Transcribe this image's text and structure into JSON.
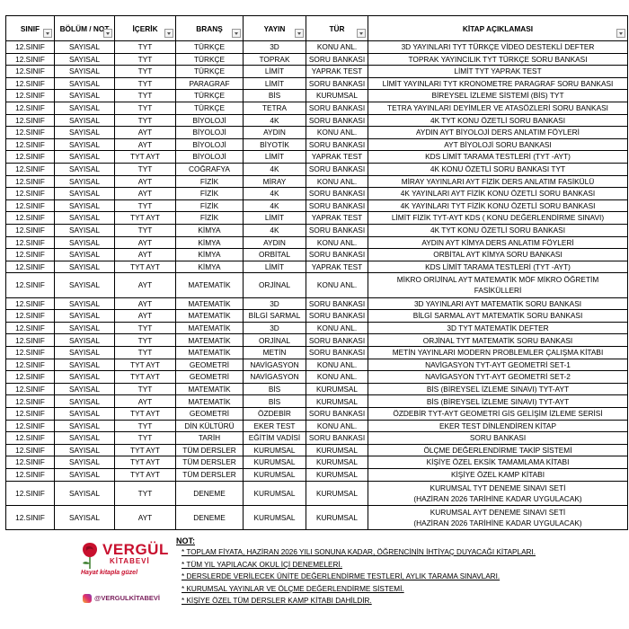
{
  "table": {
    "headers": [
      "SINIF",
      "BÖLÜM / NOT",
      "İÇERİK",
      "BRANŞ",
      "YAYIN",
      "TÜR",
      "KİTAP AÇIKLAMASI"
    ],
    "rows": [
      [
        "12.SINIF",
        "SAYISAL",
        "TYT",
        "TÜRKÇE",
        "3D",
        "KONU ANL.",
        "3D YAYINLARI TYT TÜRKÇE VİDEO DESTEKLİ DEFTER"
      ],
      [
        "12.SINIF",
        "SAYISAL",
        "TYT",
        "TÜRKÇE",
        "TOPRAK",
        "SORU BANKASI",
        "TOPRAK YAYINCILIK TYT TÜRKÇE SORU BANKASI"
      ],
      [
        "12.SINIF",
        "SAYISAL",
        "TYT",
        "TÜRKÇE",
        "LİMİT",
        "YAPRAK TEST",
        "LİMİT TYT YAPRAK  TEST"
      ],
      [
        "12.SINIF",
        "SAYISAL",
        "TYT",
        "PARAGRAF",
        "LİMİT",
        "SORU BANKASI",
        "LİMİT YAYINLARI TYT KRONOMETRE PARAGRAF SORU BANKASI"
      ],
      [
        "12.SINIF",
        "SAYISAL",
        "TYT",
        "TÜRKÇE",
        "BİS",
        "KURUMSAL",
        "BİREYSEL İZLEME SİSTEMİ (BİS) TYT"
      ],
      [
        "12.SINIF",
        "SAYISAL",
        "TYT",
        "TÜRKÇE",
        "TETRA",
        "SORU BANKASI",
        "TETRA YAYINLARI DEYİMLER VE ATASÖZLERİ SORU BANKASI"
      ],
      [
        "12.SINIF",
        "SAYISAL",
        "TYT",
        "BİYOLOJİ",
        "4K",
        "SORU BANKASI",
        "4K TYT KONU ÖZETLİ SORU BANKASI"
      ],
      [
        "12.SINIF",
        "SAYISAL",
        "AYT",
        "BİYOLOJİ",
        "AYDIN",
        "KONU ANL.",
        "AYDIN AYT BİYOLOJİ DERS ANLATIM FÖYLERİ"
      ],
      [
        "12.SINIF",
        "SAYISAL",
        "AYT",
        "BİYOLOJİ",
        "BİYOTİK",
        "SORU BANKASI",
        "AYT BİYOLOJİ SORU BANKASI"
      ],
      [
        "12.SINIF",
        "SAYISAL",
        "TYT AYT",
        "BİYOLOJİ",
        "LİMİT",
        "YAPRAK TEST",
        "KDS LİMİT TARAMA TESTLERİ (TYT -AYT)"
      ],
      [
        "12.SINIF",
        "SAYISAL",
        "TYT",
        "COĞRAFYA",
        "4K",
        "SORU BANKASI",
        "4K KONU ÖZETLİ SORU BANKASI TYT"
      ],
      [
        "12.SINIF",
        "SAYISAL",
        "AYT",
        "FİZİK",
        "MİRAY",
        "KONU ANL.",
        "MİRAY YAYINLARI AYT FİZİK DERS ANLATIM FASİKÜLÜ"
      ],
      [
        "12.SINIF",
        "SAYISAL",
        "AYT",
        "FİZİK",
        "4K",
        "SORU BANKASI",
        "4K YAYINLARI AYT FİZİK KONU ÖZETLİ SORU BANKASI"
      ],
      [
        "12.SINIF",
        "SAYISAL",
        "TYT",
        "FİZİK",
        "4K",
        "SORU BANKASI",
        "4K YAYINLARI TYT FİZİK KONU ÖZETLİ SORU BANKASI"
      ],
      [
        "12.SINIF",
        "SAYISAL",
        "TYT AYT",
        "FİZİK",
        "LİMİT",
        "YAPRAK TEST",
        "LİMİT FİZİK TYT-AYT  KDS ( KONU DEĞERLENDİRME SINAVI)"
      ],
      [
        "12.SINIF",
        "SAYISAL",
        "TYT",
        "KİMYA",
        "4K",
        "SORU BANKASI",
        "4K TYT KONU ÖZETLİ SORU BANKASI"
      ],
      [
        "12.SINIF",
        "SAYISAL",
        "AYT",
        "KİMYA",
        "AYDIN",
        "KONU ANL.",
        "AYDIN AYT KİMYA DERS ANLATIM FÖYLERİ"
      ],
      [
        "12.SINIF",
        "SAYISAL",
        "AYT",
        "KİMYA",
        "ORBİTAL",
        "SORU BANKASI",
        "ORBİTAL AYT KİMYA SORU BANKASI"
      ],
      [
        "12.SINIF",
        "SAYISAL",
        "TYT AYT",
        "KİMYA",
        "LİMİT",
        "YAPRAK TEST",
        "KDS LİMİT TARAMA TESTLERİ (TYT -AYT)"
      ],
      [
        "12.SINIF",
        "SAYISAL",
        "AYT",
        "MATEMATİK",
        "ORJİNAL",
        "KONU ANL.",
        [
          "MİKRO ORİJİNAL AYT MATEMATİK MÖF MİKRO ÖĞRETİM",
          "FASİKÜLLERİ"
        ]
      ],
      [
        "12.SINIF",
        "SAYISAL",
        "AYT",
        "MATEMATİK",
        "3D",
        "SORU BANKASI",
        "3D YAYINLARI AYT MATEMATİK SORU BANKASI"
      ],
      [
        "12.SINIF",
        "SAYISAL",
        "AYT",
        "MATEMATİK",
        "BİLGİ SARMAL",
        "SORU BANKASI",
        "BİLGİ SARMAL AYT MATEMATİK SORU BANKASI"
      ],
      [
        "12.SINIF",
        "SAYISAL",
        "TYT",
        "MATEMATİK",
        "3D",
        "KONU ANL.",
        "3D TYT MATEMATİK DEFTER"
      ],
      [
        "12.SINIF",
        "SAYISAL",
        "TYT",
        "MATEMATİK",
        "ORJİNAL",
        "SORU BANKASI",
        "ORJİNAL TYT MATEMATİK SORU BANKASI"
      ],
      [
        "12.SINIF",
        "SAYISAL",
        "TYT",
        "MATEMATİK",
        "METİN",
        "SORU BANKASI",
        "METİN YAYINLARI MODERN PROBLEMLER ÇALIŞMA KİTABI"
      ],
      [
        "12.SINIF",
        "SAYISAL",
        "TYT AYT",
        "GEOMETRİ",
        "NAVİGASYON",
        "KONU ANL.",
        "NAVİGASYON TYT-AYT GEOMETRİ SET-1"
      ],
      [
        "12.SINIF",
        "SAYISAL",
        "TYT AYT",
        "GEOMETRİ",
        "NAVİGASYON",
        "KONU ANL.",
        "NAVİGASYON TYT-AYT GEOMETRİ SET-2"
      ],
      [
        "12.SINIF",
        "SAYISAL",
        "TYT",
        "MATEMATİK",
        "BİS",
        "KURUMSAL",
        "BİS (BİREYSEL İZLEME SINAVI) TYT-AYT"
      ],
      [
        "12.SINIF",
        "SAYISAL",
        "AYT",
        "MATEMATİK",
        "BİS",
        "KURUMSAL",
        "BİS (BİREYSEL İZLEME SINAVI) TYT-AYT"
      ],
      [
        "12.SINIF",
        "SAYISAL",
        "TYT AYT",
        "GEOMETRİ",
        "ÖZDEBİR",
        "SORU BANKASI",
        "ÖZDEBİR TYT-AYT GEOMETRİ GİS GELİŞİM İZLEME SERİSİ"
      ],
      [
        "12.SINIF",
        "SAYISAL",
        "TYT",
        "DİN KÜLTÜRÜ",
        "EKER TEST",
        "KONU ANL.",
        "EKER TEST DİNLENDİREN KİTAP"
      ],
      [
        "12.SINIF",
        "SAYISAL",
        "TYT",
        "TARİH",
        "EĞİTİM VADİSİ",
        "SORU BANKASI",
        "SORU BANKASI"
      ],
      [
        "12.SINIF",
        "SAYISAL",
        "TYT AYT",
        "TÜM DERSLER",
        "KURUMSAL",
        "KURUMSAL",
        "ÖLÇME DEĞERLENDİRME TAKİP SİSTEMİ"
      ],
      [
        "12.SINIF",
        "SAYISAL",
        "TYT AYT",
        "TÜM DERSLER",
        "KURUMSAL",
        "KURUMSAL",
        "KİŞİYE ÖZEL EKSİK TAMAMLAMA KİTABI"
      ],
      [
        "12.SINIF",
        "SAYISAL",
        "TYT AYT",
        "TÜM DERSLER",
        "KURUMSAL",
        "KURUMSAL",
        "KİŞİYE ÖZEL KAMP KİTABI"
      ],
      [
        "12.SINIF",
        "SAYISAL",
        "TYT",
        "DENEME",
        "KURUMSAL",
        "KURUMSAL",
        [
          "KURUMSAL TYT DENEME SINAVI SETİ",
          "(HAZİRAN 2026 TARİHİNE KADAR UYGULACAK)"
        ]
      ],
      [
        "12.SINIF",
        "SAYISAL",
        "AYT",
        "DENEME",
        "KURUMSAL",
        "KURUMSAL",
        [
          "KURUMSAL AYT DENEME SINAVI SETİ",
          "(HAZİRAN 2026 TARİHİNE KADAR UYGULACAK)"
        ]
      ]
    ]
  },
  "logo": {
    "name": "VERGÜL",
    "subtitle": "KİTABEVİ",
    "slogan": "Hayat kitapla güzel",
    "instagram": "@VERGULKİTABEVİ"
  },
  "notes": {
    "title": "NOT:",
    "items": [
      "* TOPLAM FİYATA, HAZİRAN 2026 YILI SONUNA KADAR, ÖĞRENCİNİN İHTİYAÇ DUYACAĞI KİTAPLARI.",
      "* TÜM YIL YAPILACAK OKUL İÇİ DENEMELERİ.",
      "* DERSLERDE VERİLECEK ÜNİTE DEĞERLENDİRME TESTLERİ, AYLIK TARAMA SINAVLARI.",
      "* KURUMSAL YAYINLAR VE ÖLÇME DEĞERLENDİRME SİSTEMİ.",
      "* KİŞİYE ÖZEL TÜM DERSLER KAMP KİTABI DAHİLDİR."
    ]
  }
}
